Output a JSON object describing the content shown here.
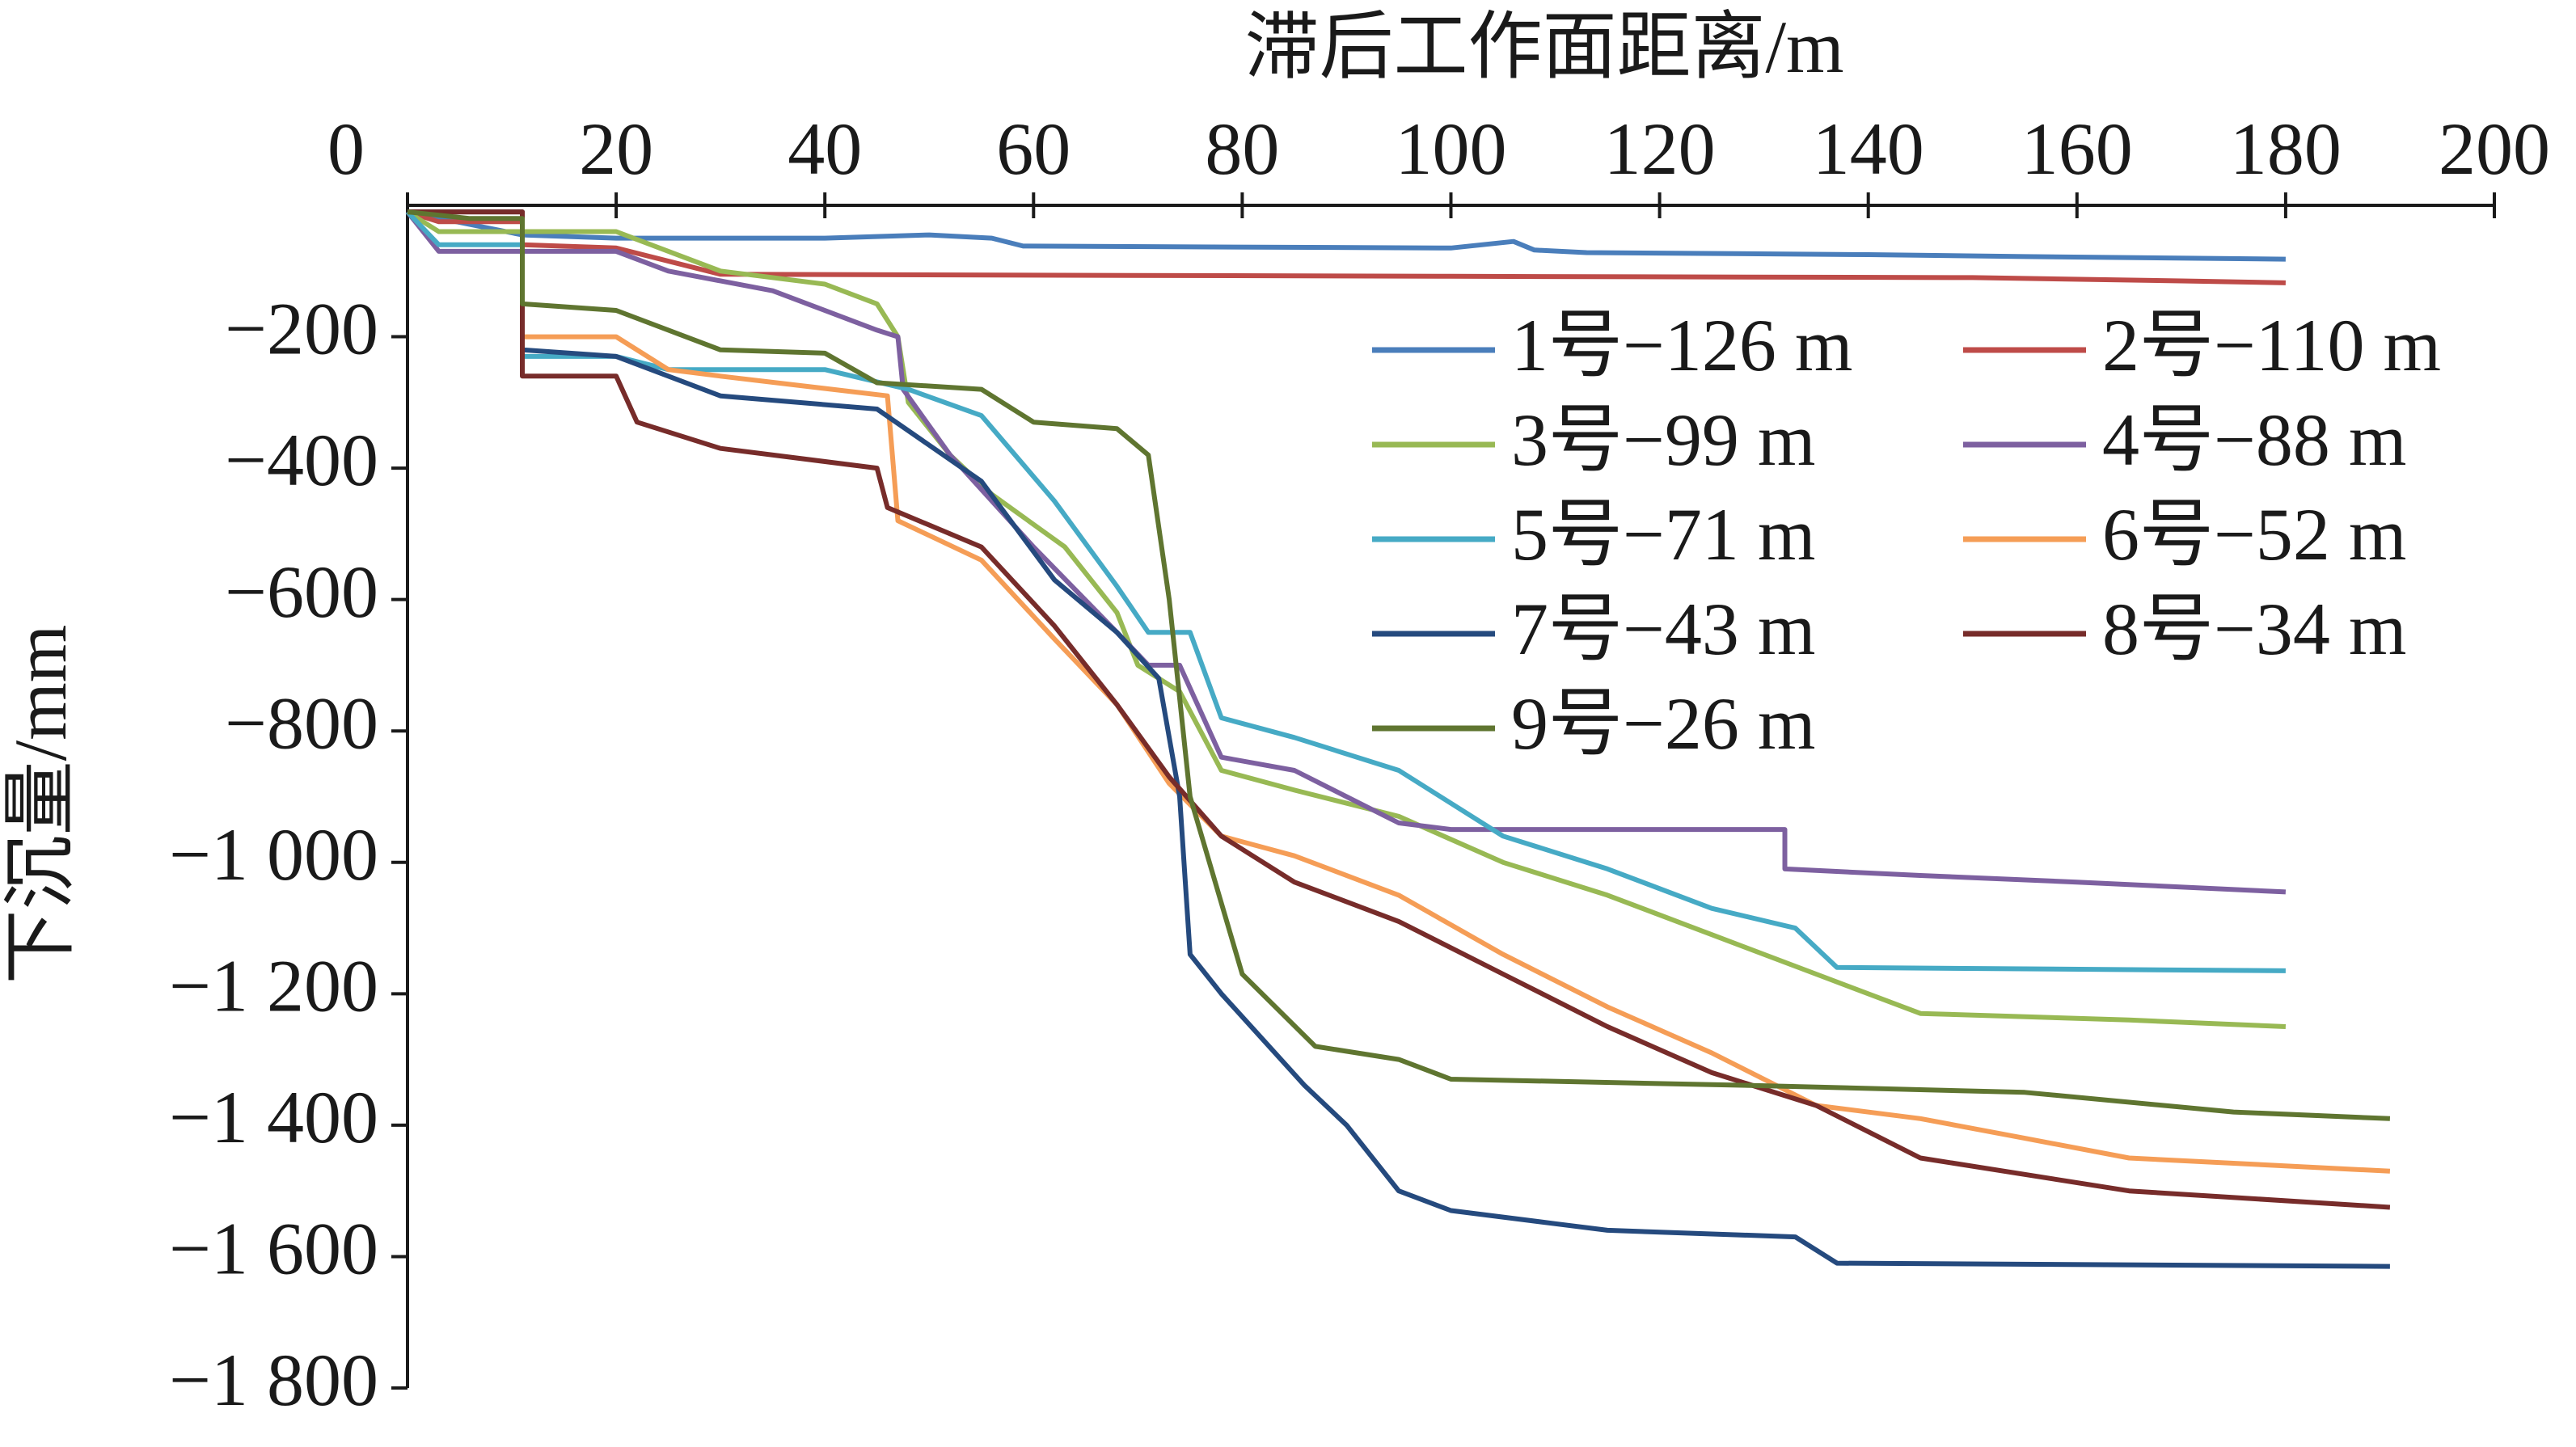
{
  "chart_data": {
    "type": "line",
    "title": "滞后工作面距离/m",
    "y_label": "下沉量/mm",
    "xlim": [
      0,
      200
    ],
    "ylim": [
      -1800,
      0
    ],
    "xticks": [
      0,
      20,
      40,
      60,
      80,
      100,
      120,
      140,
      160,
      180,
      200
    ],
    "yticks": [
      {
        "value": -200,
        "label": "−200"
      },
      {
        "value": -400,
        "label": "−400"
      },
      {
        "value": -600,
        "label": "−600"
      },
      {
        "value": -800,
        "label": "−800"
      },
      {
        "value": -1000,
        "label": "−1 000"
      },
      {
        "value": -1200,
        "label": "−1 200"
      },
      {
        "value": -1400,
        "label": "−1 400"
      },
      {
        "value": -1600,
        "label": "−1 600"
      },
      {
        "value": -1800,
        "label": "−1 800"
      }
    ],
    "x_axis_position": "top",
    "legend": "upper right",
    "series": [
      {
        "name": "1号−126 m",
        "color": "#4a7ebb",
        "x": [
          0,
          11,
          20,
          40,
          50,
          56,
          59,
          100,
          106,
          108,
          113,
          140,
          155,
          180
        ],
        "values": [
          -10,
          -45,
          -50,
          -50,
          -45,
          -50,
          -62,
          -65,
          -55,
          -68,
          -72,
          -75,
          -78,
          -82
        ]
      },
      {
        "name": "2号−110 m",
        "color": "#be4b48",
        "x": [
          0,
          3,
          11,
          11,
          20,
          30,
          100,
          150,
          170,
          180
        ],
        "values": [
          -10,
          -25,
          -25,
          -60,
          -65,
          -105,
          -108,
          -110,
          -115,
          -118
        ]
      },
      {
        "name": "3号−99 m",
        "color": "#98b954",
        "x": [
          0,
          3,
          11,
          20,
          30,
          40,
          45,
          47,
          48,
          52,
          56,
          63,
          68,
          70,
          74,
          78,
          85,
          95,
          105,
          115,
          125,
          135,
          145,
          165,
          180
        ],
        "values": [
          -10,
          -40,
          -40,
          -40,
          -100,
          -120,
          -150,
          -200,
          -300,
          -380,
          -440,
          -520,
          -620,
          -700,
          -740,
          -860,
          -890,
          -930,
          -1000,
          -1050,
          -1110,
          -1170,
          -1230,
          -1240,
          -1250
        ]
      },
      {
        "name": "4号−88 m",
        "color": "#7d60a0",
        "x": [
          0,
          3,
          20,
          25,
          35,
          45,
          47,
          47.5,
          52,
          60,
          68,
          71,
          74,
          78,
          85,
          95,
          100,
          132,
          132,
          145,
          160,
          180
        ],
        "values": [
          -10,
          -70,
          -70,
          -100,
          -130,
          -190,
          -200,
          -280,
          -380,
          -520,
          -650,
          -700,
          -700,
          -840,
          -860,
          -940,
          -950,
          -950,
          -1010,
          -1020,
          -1030,
          -1045
        ]
      },
      {
        "name": "5号−71 m",
        "color": "#46aac5",
        "x": [
          0,
          3,
          11,
          11,
          20,
          25,
          40,
          48,
          55,
          62,
          68,
          71,
          75,
          78,
          85,
          95,
          105,
          115,
          125,
          133,
          137,
          180
        ],
        "values": [
          -10,
          -60,
          -60,
          -230,
          -230,
          -250,
          -250,
          -280,
          -320,
          -450,
          -580,
          -650,
          -650,
          -780,
          -810,
          -860,
          -960,
          -1010,
          -1070,
          -1100,
          -1160,
          -1165
        ]
      },
      {
        "name": "6号−52 m",
        "color": "#f59d56",
        "x": [
          0,
          11,
          11,
          20,
          25,
          30,
          46,
          47,
          55,
          62,
          68,
          73,
          78,
          85,
          95,
          105,
          115,
          125,
          135,
          145,
          155,
          165,
          190
        ],
        "values": [
          -10,
          -10,
          -200,
          -200,
          -250,
          -260,
          -290,
          -480,
          -540,
          -660,
          -760,
          -880,
          -960,
          -990,
          -1050,
          -1140,
          -1220,
          -1290,
          -1370,
          -1390,
          -1420,
          -1450,
          -1470
        ]
      },
      {
        "name": "7号−43 m",
        "color": "#254a7e",
        "x": [
          0,
          11,
          11,
          20,
          30,
          45,
          55,
          62,
          68,
          72,
          74,
          75,
          78,
          86,
          90,
          95,
          100,
          110,
          115,
          133,
          137,
          190
        ],
        "values": [
          -10,
          -10,
          -220,
          -230,
          -290,
          -310,
          -420,
          -570,
          -650,
          -720,
          -900,
          -1140,
          -1200,
          -1340,
          -1400,
          -1500,
          -1530,
          -1550,
          -1560,
          -1570,
          -1610,
          -1615
        ]
      },
      {
        "name": "8号−34 m",
        "color": "#772c2a",
        "x": [
          0,
          11,
          11,
          20,
          22,
          30,
          45,
          46,
          55,
          62,
          68,
          73,
          78,
          85,
          95,
          105,
          115,
          125,
          135,
          145,
          165,
          190
        ],
        "values": [
          -10,
          -10,
          -260,
          -260,
          -330,
          -370,
          -400,
          -460,
          -520,
          -640,
          -760,
          -870,
          -960,
          -1030,
          -1090,
          -1170,
          -1250,
          -1320,
          -1370,
          -1450,
          -1500,
          -1525
        ]
      },
      {
        "name": "9号−26 m",
        "color": "#5f7530",
        "x": [
          0,
          6,
          11,
          11,
          20,
          30,
          40,
          45,
          55,
          60,
          68,
          71,
          73,
          75,
          80,
          87,
          95,
          100,
          130,
          155,
          175,
          190
        ],
        "values": [
          -10,
          -20,
          -20,
          -150,
          -160,
          -220,
          -225,
          -270,
          -280,
          -330,
          -340,
          -380,
          -600,
          -900,
          -1170,
          -1280,
          -1300,
          -1330,
          -1340,
          -1350,
          -1380,
          -1390
        ]
      }
    ]
  }
}
